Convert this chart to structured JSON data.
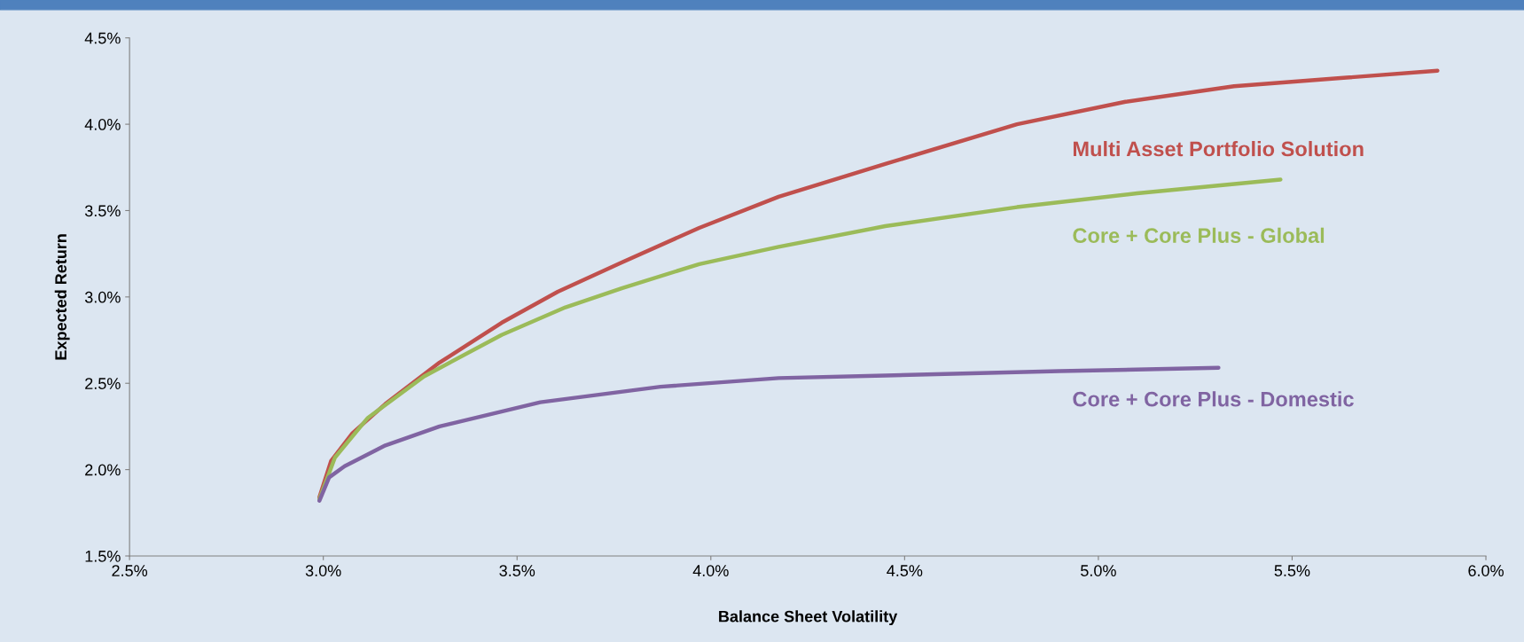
{
  "chart_data": {
    "type": "line",
    "xlabel": "Balance Sheet Volatility",
    "ylabel": "Expected Return",
    "xlim": [
      2.5,
      6.0
    ],
    "ylim": [
      1.5,
      4.5
    ],
    "grid": false,
    "legend": false,
    "marker": "none",
    "line_style": "solid",
    "xticks": [
      {
        "value": 2.5,
        "label": "2.5%"
      },
      {
        "value": 3.0,
        "label": "3.0%"
      },
      {
        "value": 3.5,
        "label": "3.5%"
      },
      {
        "value": 4.0,
        "label": "4.0%"
      },
      {
        "value": 4.5,
        "label": "4.5%"
      },
      {
        "value": 5.0,
        "label": "5.0%"
      },
      {
        "value": 5.5,
        "label": "5.5%"
      },
      {
        "value": 6.0,
        "label": "6.0%"
      }
    ],
    "yticks": [
      {
        "value": 1.5,
        "label": "1.5%"
      },
      {
        "value": 2.0,
        "label": "2.0%"
      },
      {
        "value": 2.5,
        "label": "2.5%"
      },
      {
        "value": 3.0,
        "label": "3.0%"
      },
      {
        "value": 3.5,
        "label": "3.5%"
      },
      {
        "value": 4.0,
        "label": "4.0%"
      },
      {
        "value": 4.5,
        "label": "4.5%"
      }
    ],
    "series": [
      {
        "name": "Multi Asset Portfolio Solution",
        "color": "#c0504d",
        "x": [
          2.99,
          3.02,
          3.075,
          3.16,
          3.3,
          3.46,
          3.605,
          3.77,
          3.97,
          4.175,
          4.45,
          4.79,
          5.07,
          5.35,
          5.64,
          5.875
        ],
        "values": [
          1.84,
          2.05,
          2.21,
          2.38,
          2.62,
          2.85,
          3.03,
          3.2,
          3.4,
          3.58,
          3.77,
          4.0,
          4.13,
          4.22,
          4.27,
          4.31
        ]
      },
      {
        "name": "Core + Core Plus - Global",
        "color": "#9bbb59",
        "x": [
          2.99,
          3.03,
          3.115,
          3.26,
          3.46,
          3.625,
          3.77,
          3.97,
          4.175,
          4.45,
          4.79,
          5.1,
          5.47
        ],
        "values": [
          1.83,
          2.07,
          2.3,
          2.54,
          2.78,
          2.94,
          3.05,
          3.19,
          3.29,
          3.41,
          3.52,
          3.6,
          3.68
        ]
      },
      {
        "name": "Core + Core Plus - Domestic",
        "color": "#8064a2",
        "x": [
          2.99,
          3.015,
          3.055,
          3.16,
          3.3,
          3.56,
          3.87,
          4.175,
          4.45,
          4.9,
          5.31
        ],
        "values": [
          1.82,
          1.955,
          2.02,
          2.14,
          2.25,
          2.39,
          2.48,
          2.53,
          2.545,
          2.57,
          2.59
        ]
      }
    ]
  }
}
